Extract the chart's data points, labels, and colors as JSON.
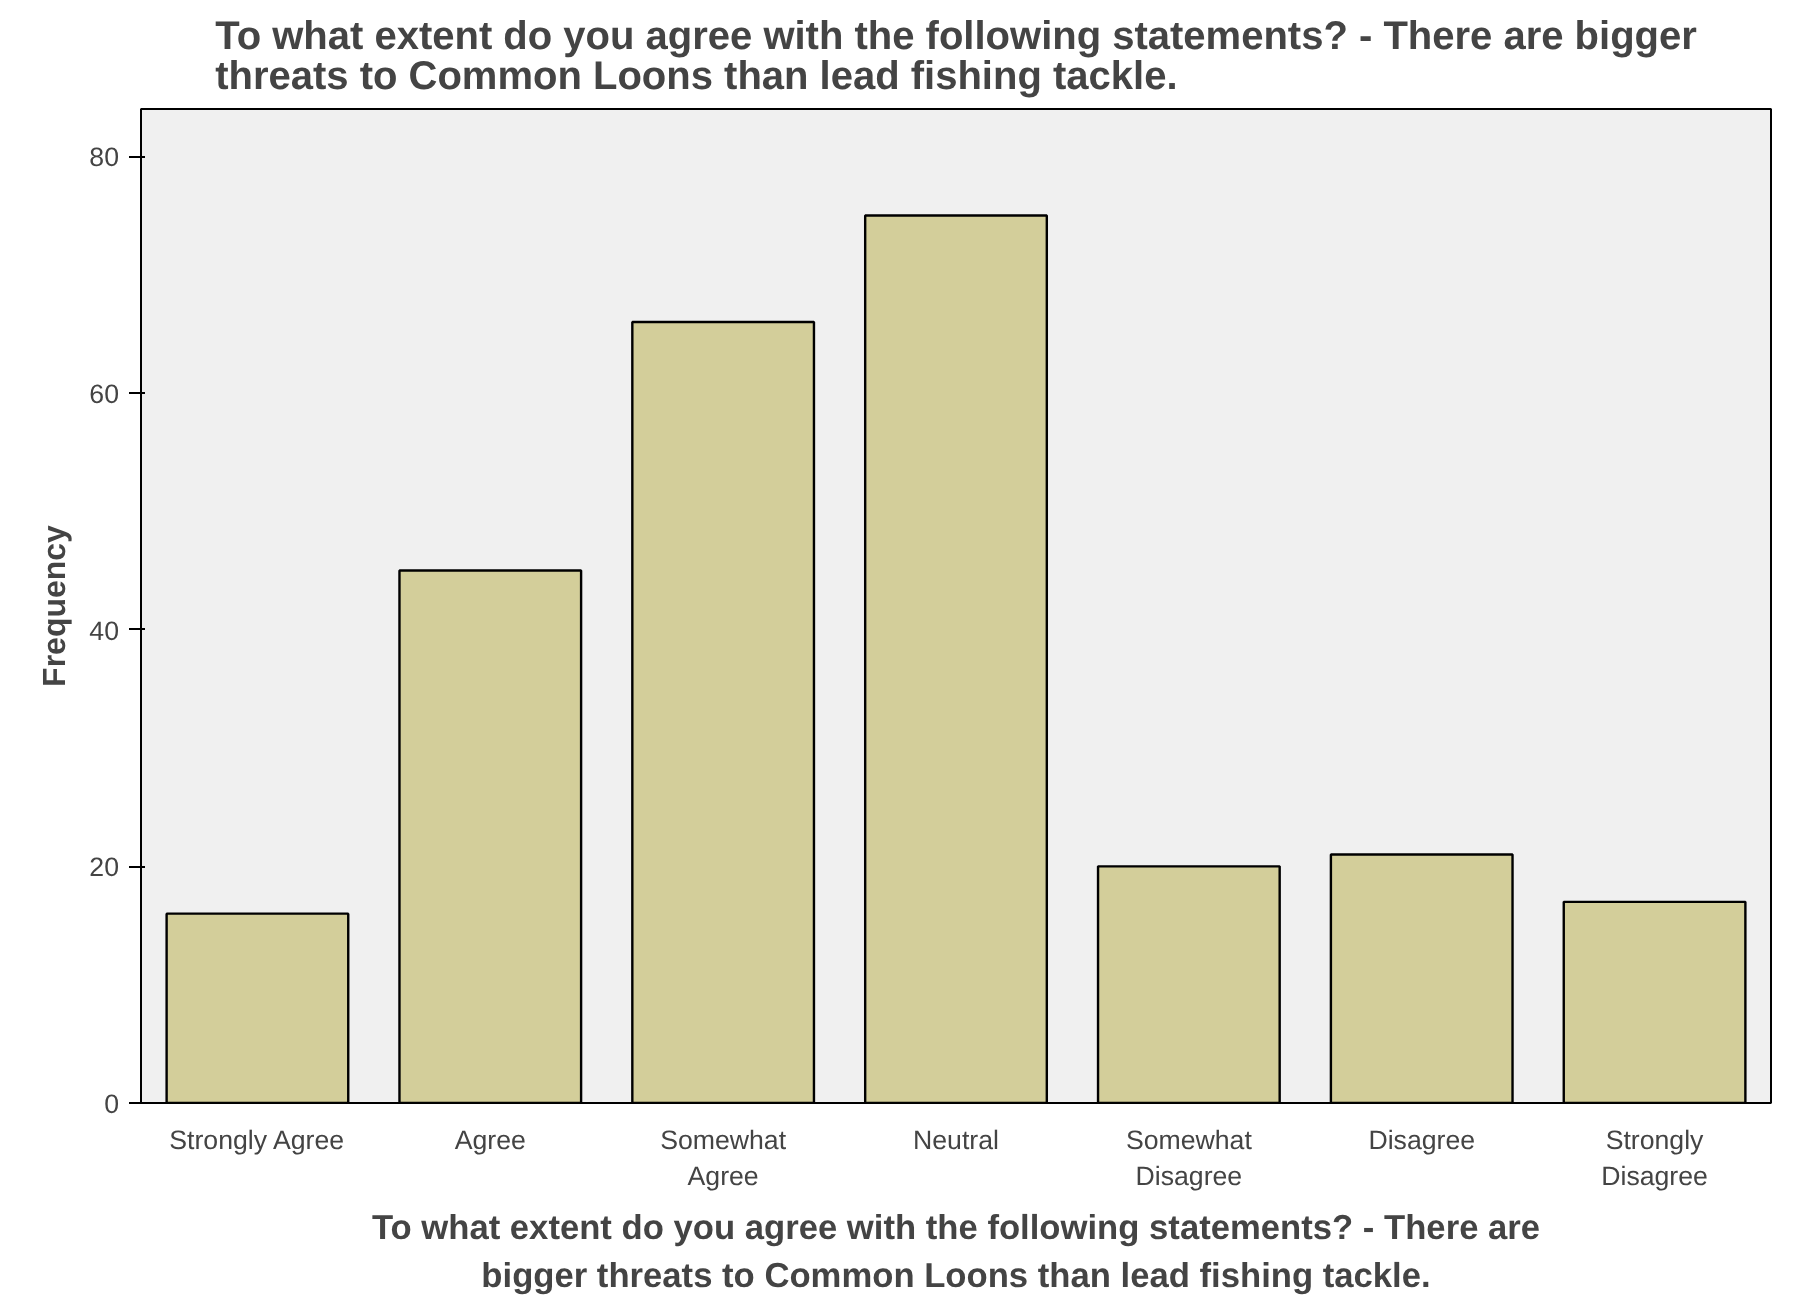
{
  "chart_data": {
    "type": "bar",
    "title": "To what extent do you agree with the following statements? - There are bigger\nthreats to Common Loons than lead fishing tackle.",
    "xlabel": "To what extent do you agree with the following statements? - There are\nbigger threats to Common Loons than lead fishing tackle.",
    "ylabel": "Frequency",
    "categories": [
      "Strongly Agree",
      "Agree",
      "Somewhat\nAgree",
      "Neutral",
      "Somewhat\nDisagree",
      "Disagree",
      "Strongly\nDisagree"
    ],
    "values": [
      16,
      45,
      66,
      75,
      20,
      21,
      17
    ],
    "color": "#d3ce9a",
    "ylim": [
      0,
      84
    ],
    "yticks": [
      0,
      20,
      40,
      60,
      80
    ],
    "grid": false
  }
}
